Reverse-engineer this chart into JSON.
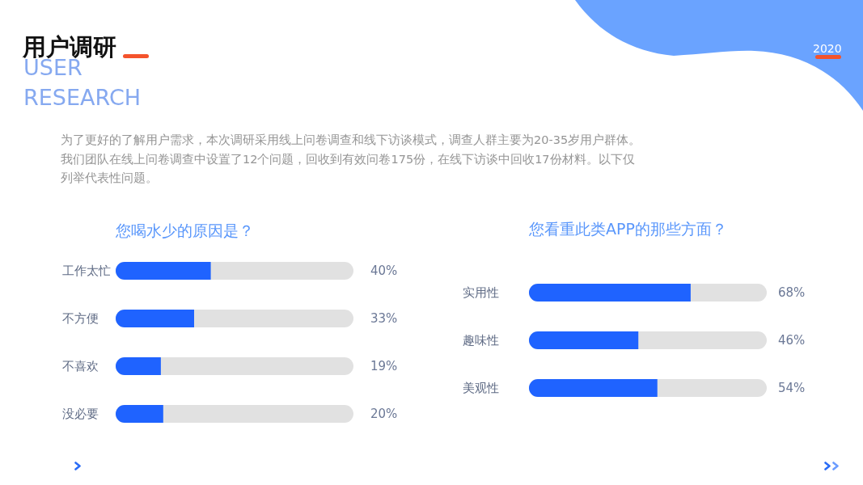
{
  "chart_data": [
    {
      "type": "bar",
      "orientation": "horizontal",
      "title": "您喝水少的原因是？",
      "categories": [
        "工作太忙",
        "不方便",
        "不喜欢",
        "没必要"
      ],
      "values": [
        40,
        33,
        19,
        20
      ],
      "value_labels": [
        "40%",
        "33%",
        "19%",
        "20%"
      ],
      "color": "#1f63ff",
      "xlim": [
        0,
        100
      ],
      "tick_labels": "y",
      "annotations": [
        "用户调研",
        "USER RESEARCH",
        "2020",
        "为了更好的了解用户需求，本次调研采用线上问卷调查和线下访谈模式，调查人群主要为20-35岁用户群体。",
        "我们团队在线上问卷调查中设置了12个问题，回收到有效问卷175份，在线下访谈中回收17份材料。以下仅列举代表性问题。"
      ]
    },
    {
      "type": "bar",
      "orientation": "horizontal",
      "title": "您看重此类APP的那些方面？",
      "categories": [
        "实用性",
        "趣味性",
        "美观性"
      ],
      "values": [
        68,
        46,
        54
      ],
      "value_labels": [
        "68%",
        "46%",
        "54%"
      ],
      "color": "#1f63ff",
      "xlim": [
        0,
        100
      ],
      "tick_labels": "y"
    }
  ]
}
